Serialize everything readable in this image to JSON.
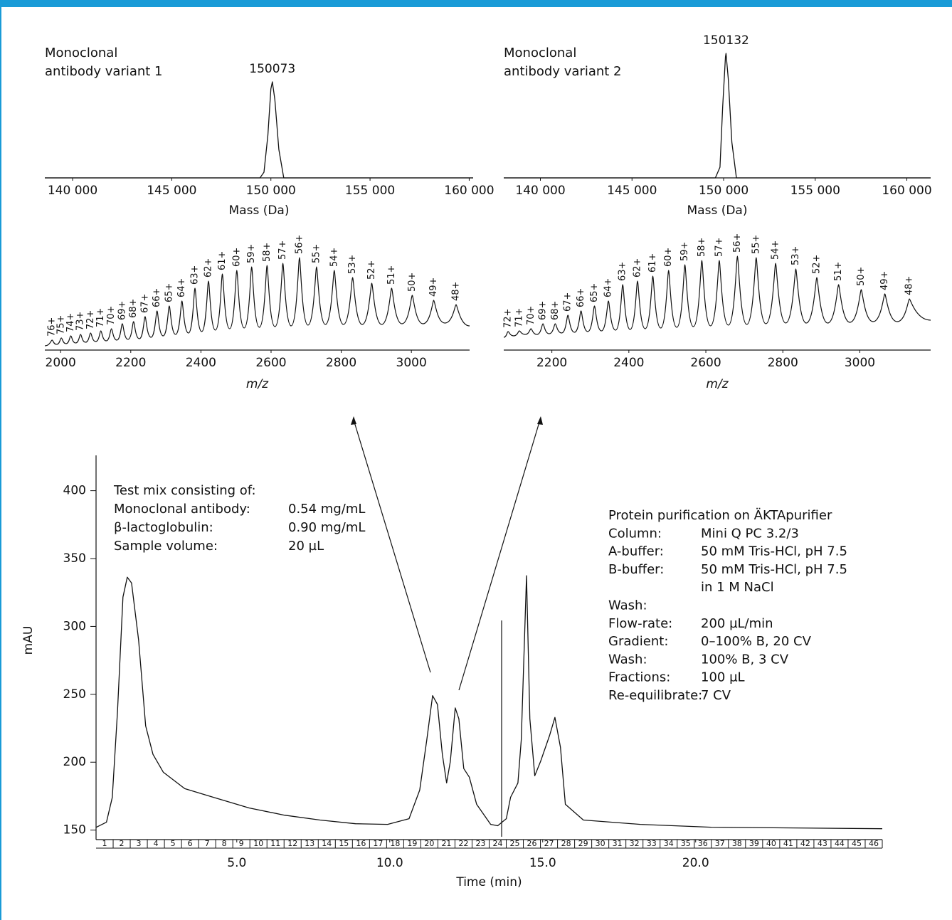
{
  "chart_data": [
    {
      "type": "line",
      "title": "Monoclonal antibody variant 1",
      "xlabel": "Mass (Da)",
      "color": "#111111",
      "x": [
        138600,
        149450,
        149650,
        149850,
        150000,
        150073,
        150200,
        150400,
        150650,
        160200
      ],
      "values": [
        0,
        0,
        8,
        60,
        125,
        135,
        110,
        40,
        0,
        0
      ],
      "peak_label": 150073,
      "xlim": [
        138600,
        160200
      ],
      "ylim": [
        0,
        190
      ],
      "xticks": [
        {
          "value": 140000,
          "label": "140 000"
        },
        {
          "value": 145000,
          "label": "145 000"
        },
        {
          "value": 150000,
          "label": "150 000"
        },
        {
          "value": 155000,
          "label": "155 000"
        },
        {
          "value": 160000,
          "label": "160 000"
        }
      ]
    },
    {
      "type": "line",
      "title": "Monoclonal antibody variant 2",
      "xlabel": "Mass (Da)",
      "color": "#111111",
      "x": [
        138000,
        149550,
        149800,
        149950,
        150100,
        150132,
        150250,
        150450,
        150700,
        161300
      ],
      "values": [
        0,
        0,
        15,
        100,
        170,
        175,
        140,
        50,
        0,
        0
      ],
      "peak_label": 150132,
      "xlim": [
        138000,
        161300
      ],
      "ylim": [
        0,
        190
      ],
      "xticks": [
        {
          "value": 140000,
          "label": "140 000"
        },
        {
          "value": 145000,
          "label": "145 000"
        },
        {
          "value": 150000,
          "label": "150 000"
        },
        {
          "value": 155000,
          "label": "155 000"
        },
        {
          "value": 160000,
          "label": "160 000"
        }
      ]
    },
    {
      "type": "spectrum",
      "xlabel": "m/z",
      "color": "#111111",
      "peaks": {
        "labels": [
          "76+",
          "75+",
          "74+",
          "73+",
          "72+",
          "71+",
          "70+",
          "69+",
          "68+",
          "67+",
          "66+",
          "65+",
          "64+",
          "63+",
          "62+",
          "61+",
          "60+",
          "59+",
          "58+",
          "57+",
          "56+",
          "55+",
          "54+",
          "53+",
          "52+",
          "51+",
          "50+",
          "49+",
          "48+"
        ],
        "x": [
          1975.6,
          2002.0,
          2029.0,
          2056.8,
          2085.4,
          2114.7,
          2144.9,
          2176.0,
          2208.0,
          2240.9,
          2274.8,
          2309.8,
          2345.9,
          2383.1,
          2421.5,
          2461.2,
          2502.2,
          2544.6,
          2588.5,
          2633.8,
          2680.9,
          2729.6,
          2780.1,
          2832.5,
          2887.0,
          2943.6,
          3002.5,
          3063.7,
          3127.5
        ],
        "values": [
          14,
          17,
          20,
          22,
          24,
          27,
          30,
          37,
          40,
          47,
          55,
          62,
          69,
          87,
          97,
          107,
          112,
          117,
          119,
          122,
          130,
          117,
          112,
          102,
          94,
          87,
          77,
          70,
          64
        ]
      },
      "valleys": {
        "x": [
          1955,
          1988.8,
          2015.5,
          2042.9,
          2071.1,
          2100.0,
          2129.8,
          2160.4,
          2192.0,
          2224.4,
          2257.8,
          2292.3,
          2327.8,
          2364.5,
          2402.3,
          2441.3,
          2481.7,
          2523.4,
          2566.5,
          2611.1,
          2657.3,
          2705.2,
          2754.8,
          2806.3,
          2859.7,
          2915.3,
          2973.0,
          3033.1,
          3095.6,
          3166
        ],
        "values": [
          6,
          8,
          9,
          10,
          11,
          12,
          13,
          14,
          15,
          16,
          18,
          20,
          22,
          24,
          26,
          28,
          30,
          31,
          32,
          33,
          34,
          35,
          36,
          36,
          36,
          36,
          37,
          37,
          38,
          34
        ]
      },
      "xlim": [
        1955,
        3166
      ],
      "ylim": [
        0,
        150
      ],
      "xticks": [
        2000,
        2200,
        2400,
        2600,
        2800,
        3000
      ]
    },
    {
      "type": "spectrum",
      "xlabel": "m/z",
      "color": "#111111",
      "peaks": {
        "labels": [
          "72+",
          "71+",
          "70+",
          "69+",
          "68+",
          "67+",
          "66+",
          "65+",
          "64+",
          "63+",
          "62+",
          "61+",
          "60+",
          "59+",
          "58+",
          "57+",
          "56+",
          "55+",
          "54+",
          "53+",
          "52+",
          "51+",
          "50+",
          "49+",
          "48+"
        ],
        "x": [
          2086.2,
          2115.5,
          2145.8,
          2176.9,
          2208.9,
          2241.8,
          2275.7,
          2310.7,
          2346.8,
          2384.1,
          2422.5,
          2462.2,
          2503.2,
          2545.6,
          2589.5,
          2634.9,
          2682.0,
          2730.7,
          2781.3,
          2833.7,
          2888.2,
          2944.8,
          3003.6,
          3064.9,
          3128.8
        ],
        "values": [
          26,
          27,
          30,
          37,
          37,
          49,
          55,
          62,
          69,
          92,
          97,
          104,
          112,
          120,
          126,
          126,
          132,
          130,
          122,
          114,
          102,
          92,
          85,
          79,
          72
        ]
      },
      "valleys": {
        "x": [
          2075,
          2100.9,
          2130.7,
          2161.4,
          2192.9,
          2225.4,
          2258.8,
          2293.2,
          2328.8,
          2365.5,
          2403.3,
          2442.4,
          2482.7,
          2524.4,
          2567.6,
          2612.2,
          2658.5,
          2706.4,
          2756.0,
          2807.5,
          2861.0,
          2916.5,
          2974.2,
          3034.3,
          3096.9,
          3184
        ],
        "values": [
          18,
          20,
          22,
          22,
          23,
          24,
          25,
          26,
          27,
          28,
          29,
          30,
          31,
          32,
          33,
          34,
          35,
          36,
          37,
          38,
          38,
          38,
          39,
          40,
          40,
          42
        ]
      },
      "xlim": [
        2075,
        3184
      ],
      "ylim": [
        0,
        150
      ],
      "xticks": [
        2200,
        2400,
        2600,
        2800,
        3000
      ]
    },
    {
      "type": "line",
      "xlabel": "Time (min)",
      "ylabel": "mAU",
      "color": "#111111",
      "x": [
        0.4,
        0.74,
        0.93,
        1.1,
        1.28,
        1.42,
        1.56,
        1.79,
        2.02,
        2.26,
        2.6,
        3.3,
        4.23,
        5.4,
        6.56,
        7.72,
        8.88,
        9.93,
        10.63,
        10.98,
        11.21,
        11.4,
        11.56,
        11.72,
        11.86,
        11.98,
        12.14,
        12.26,
        12.42,
        12.6,
        12.84,
        13.3,
        13.53,
        13.81,
        13.95,
        14.19,
        14.3,
        14.47,
        14.58,
        14.74,
        14.93,
        15.23,
        15.4,
        15.58,
        15.74,
        16.33,
        18.19,
        20.51,
        26.1
      ],
      "values": [
        152,
        155.8,
        174,
        237,
        321.6,
        336.3,
        332,
        290,
        226.8,
        205.8,
        192.6,
        180.5,
        174.2,
        166.3,
        161,
        157.4,
        154.7,
        154.2,
        158.4,
        179.5,
        216.3,
        249,
        242.6,
        205.8,
        184.7,
        200.5,
        240,
        232,
        195.3,
        189,
        169,
        154.2,
        153.2,
        158.4,
        174.2,
        184.7,
        216.3,
        337.4,
        232,
        190,
        200.5,
        220,
        233,
        211,
        169,
        157.4,
        154.2,
        152.1,
        151
      ],
      "xlim": [
        0.4,
        26.1
      ],
      "ylim": [
        143,
        426
      ],
      "xticks": [
        {
          "value": 5,
          "label": "5.0"
        },
        {
          "value": 10,
          "label": "10.0"
        },
        {
          "value": 15,
          "label": "15.0"
        },
        {
          "value": 20,
          "label": "20.0"
        }
      ],
      "yticks": [
        150,
        200,
        250,
        300,
        350,
        400
      ],
      "fractions": [
        1,
        2,
        3,
        4,
        5,
        6,
        7,
        8,
        9,
        10,
        11,
        12,
        13,
        14,
        15,
        16,
        17,
        18,
        19,
        20,
        21,
        22,
        23,
        24,
        25,
        26,
        27,
        28,
        29,
        30,
        31,
        32,
        33,
        34,
        35,
        36,
        37,
        38,
        39,
        40,
        41,
        42,
        43,
        44,
        45,
        46
      ],
      "test_mix": {
        "title": "Test mix consisting of:",
        "rows": [
          {
            "label": "Monoclonal antibody:",
            "value": "0.54 mg/mL"
          },
          {
            "label": "β-lactoglobulin:",
            "value": "0.90 mg/mL"
          },
          {
            "label": "Sample volume:",
            "value": "20 µL"
          }
        ]
      },
      "method": {
        "title": "Protein purification on ÄKTApurifier",
        "rows": [
          {
            "label": "Column:",
            "value": "Mini Q PC 3.2/3"
          },
          {
            "label": "A-buffer:",
            "value": "50 mM Tris-HCl, pH 7.5"
          },
          {
            "label": "B-buffer:",
            "value": "50 mM Tris-HCl, pH 7.5"
          },
          {
            "value": "in 1 M NaCl"
          },
          {
            "label": "Wash:"
          },
          {
            "label": "Flow-rate:",
            "value": "200 µL/min"
          },
          {
            "label": "Gradient:",
            "value": "0–100% B, 20 CV"
          },
          {
            "label": "Wash:",
            "value": "100% B, 3 CV"
          },
          {
            "label": "Fractions:",
            "value": "100 µL"
          },
          {
            "label": "Re-equilibrate:",
            "value": "7 CV"
          }
        ]
      }
    }
  ]
}
